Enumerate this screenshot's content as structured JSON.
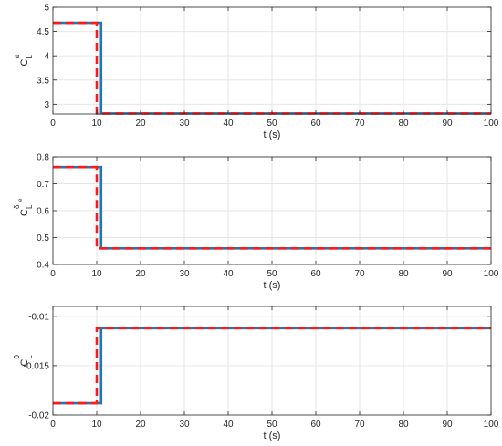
{
  "colors": {
    "series_solid": "#1f77b4",
    "series_dashed": "#ff1a1a",
    "axes": "#262626",
    "grid": "#e6e6e6"
  },
  "chart_data": [
    {
      "type": "line",
      "xlabel": "t (s)",
      "ylabel": {
        "base": "C",
        "sup": "α",
        "sub": "L",
        "subsub": ""
      },
      "xlim": [
        0,
        100
      ],
      "ylim": [
        2.8,
        5
      ],
      "xticks": [
        "0",
        "10",
        "20",
        "30",
        "40",
        "50",
        "60",
        "70",
        "80",
        "90",
        "100"
      ],
      "yticks": [
        "5",
        "4.5",
        "4",
        "3.5",
        "3"
      ],
      "ytick_values": [
        5,
        4.5,
        4,
        3.5,
        3
      ],
      "grid": true,
      "series": [
        {
          "style": "solid",
          "x": [
            0,
            11,
            11,
            100
          ],
          "y": [
            4.68,
            4.68,
            2.81,
            2.81
          ]
        },
        {
          "style": "dashed",
          "x": [
            0,
            10,
            10,
            100
          ],
          "y": [
            4.68,
            4.68,
            2.81,
            2.81
          ]
        }
      ]
    },
    {
      "type": "line",
      "xlabel": "t (s)",
      "ylabel": {
        "base": "C",
        "sup": "δ",
        "sub": "L",
        "subsub": "e"
      },
      "xlim": [
        0,
        100
      ],
      "ylim": [
        0.4,
        0.8
      ],
      "xticks": [
        "0",
        "10",
        "20",
        "30",
        "40",
        "50",
        "60",
        "70",
        "80",
        "90",
        "100"
      ],
      "yticks": [
        "0.8",
        "0.7",
        "0.6",
        "0.5",
        "0.4"
      ],
      "ytick_values": [
        0.8,
        0.7,
        0.6,
        0.5,
        0.4
      ],
      "grid": true,
      "series": [
        {
          "style": "solid",
          "x": [
            0,
            11,
            11,
            100
          ],
          "y": [
            0.762,
            0.762,
            0.46,
            0.46
          ]
        },
        {
          "style": "dashed",
          "x": [
            0,
            10,
            10,
            100
          ],
          "y": [
            0.762,
            0.762,
            0.46,
            0.46
          ]
        }
      ]
    },
    {
      "type": "line",
      "xlabel": "t (s)",
      "ylabel": {
        "base": "C",
        "sup": "0",
        "sub": "L",
        "subsub": ""
      },
      "xlim": [
        0,
        100
      ],
      "ylim": [
        -0.02,
        -0.009
      ],
      "xticks": [
        "0",
        "10",
        "20",
        "30",
        "40",
        "50",
        "60",
        "70",
        "80",
        "90",
        "100"
      ],
      "yticks": [
        "-0.01",
        "-0.015",
        "-0.02"
      ],
      "ytick_values": [
        -0.01,
        -0.015,
        -0.02
      ],
      "grid": true,
      "series": [
        {
          "style": "solid",
          "x": [
            0,
            11,
            11,
            100
          ],
          "y": [
            -0.0188,
            -0.0188,
            -0.0112,
            -0.0112
          ]
        },
        {
          "style": "dashed",
          "x": [
            0,
            10,
            10,
            100
          ],
          "y": [
            -0.0188,
            -0.0188,
            -0.0112,
            -0.0112
          ]
        }
      ]
    }
  ]
}
